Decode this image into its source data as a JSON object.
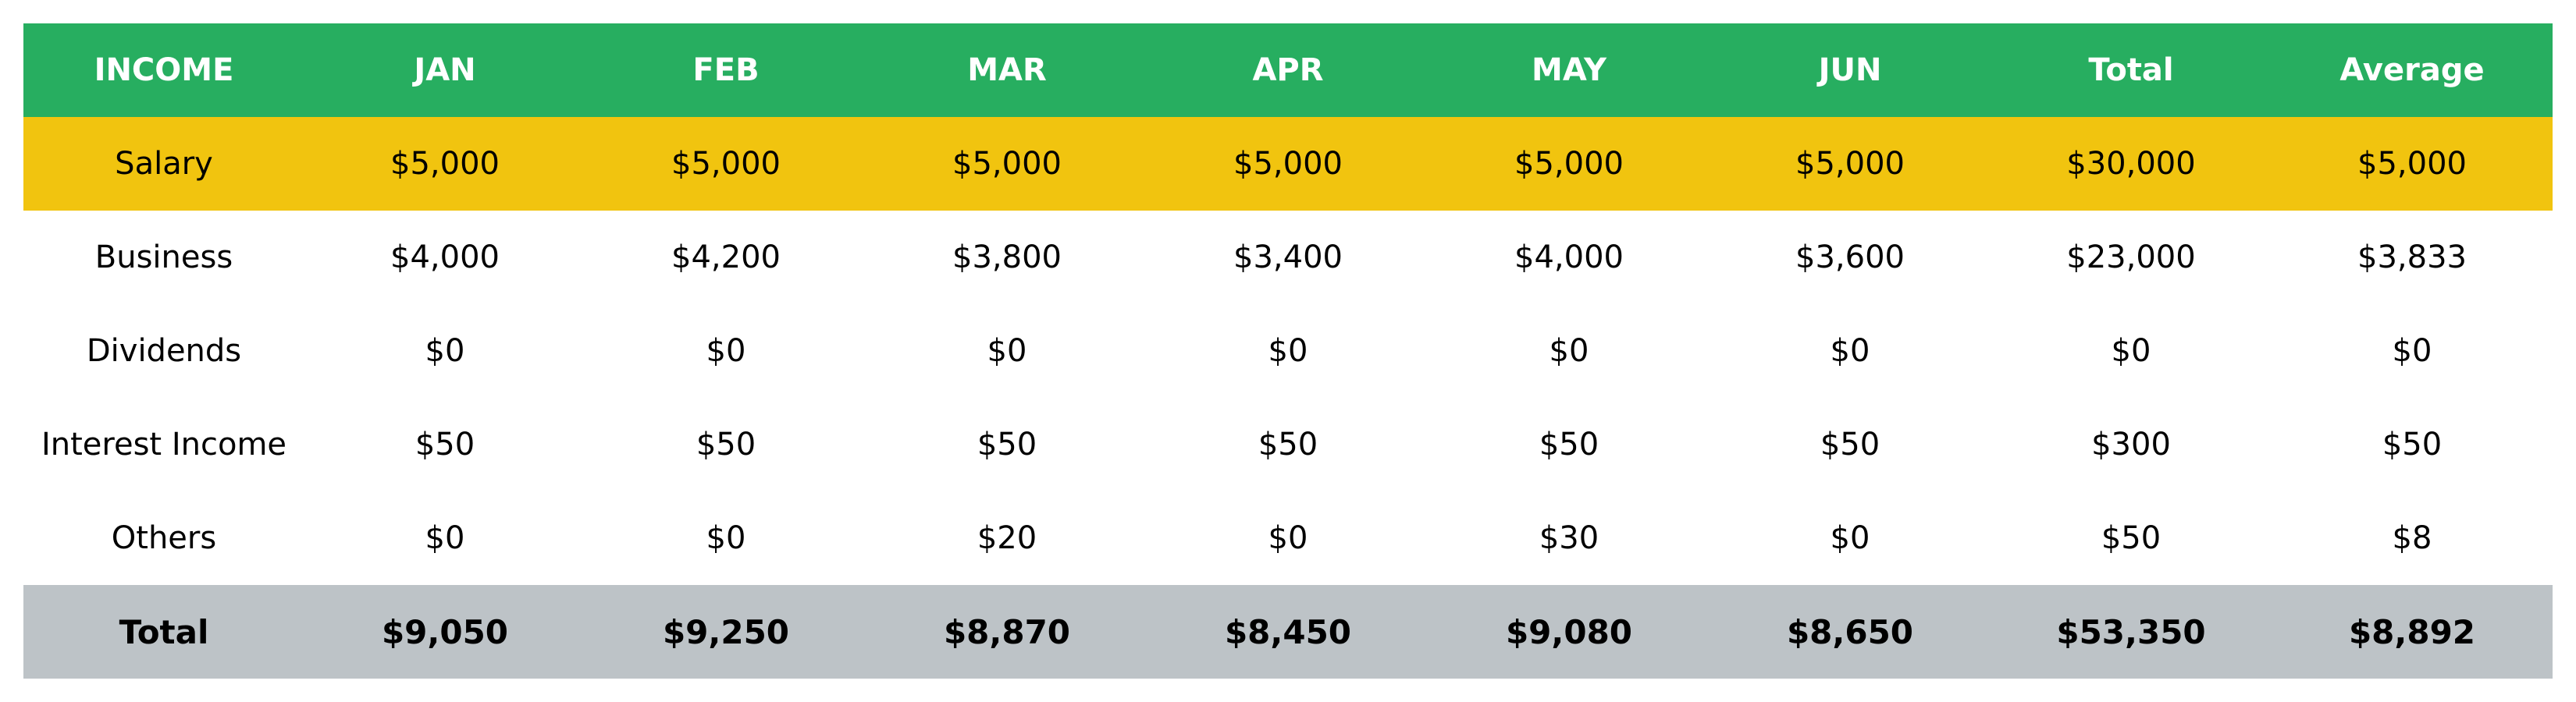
{
  "colors": {
    "header_bg": "#27ae60",
    "header_text": "#ffffff",
    "highlight_row_bg": "#f1c40f",
    "total_row_bg": "#bdc3c7",
    "body_bg": "#ffffff"
  },
  "chart_data": {
    "type": "table",
    "columns": [
      "INCOME",
      "JAN",
      "FEB",
      "MAR",
      "APR",
      "MAY",
      "JUN",
      "Total",
      "Average"
    ],
    "rows": [
      {
        "cells": [
          "Salary",
          "$5,000",
          "$5,000",
          "$5,000",
          "$5,000",
          "$5,000",
          "$5,000",
          "$30,000",
          "$5,000"
        ],
        "highlight": true
      },
      {
        "cells": [
          "Business",
          "$4,000",
          "$4,200",
          "$3,800",
          "$3,400",
          "$4,000",
          "$3,600",
          "$23,000",
          "$3,833"
        ]
      },
      {
        "cells": [
          "Dividends",
          "$0",
          "$0",
          "$0",
          "$0",
          "$0",
          "$0",
          "$0",
          "$0"
        ]
      },
      {
        "cells": [
          "Interest Income",
          "$50",
          "$50",
          "$50",
          "$50",
          "$50",
          "$50",
          "$300",
          "$50"
        ]
      },
      {
        "cells": [
          "Others",
          "$0",
          "$0",
          "$20",
          "$0",
          "$30",
          "$0",
          "$50",
          "$8"
        ]
      }
    ],
    "total_row": {
      "cells": [
        "Total",
        "$9,050",
        "$9,250",
        "$8,870",
        "$8,450",
        "$9,080",
        "$8,650",
        "$53,350",
        "$8,892"
      ]
    }
  }
}
